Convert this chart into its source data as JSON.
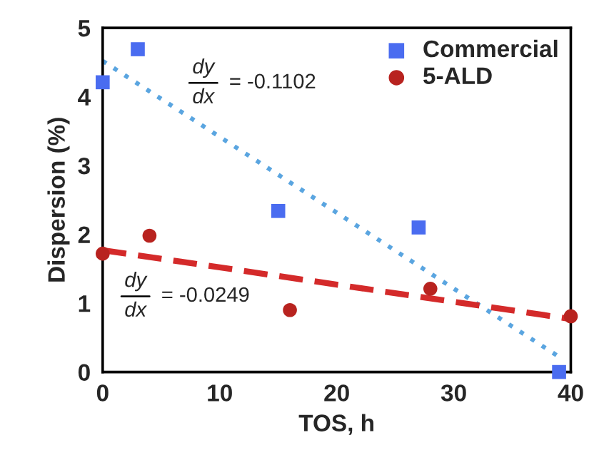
{
  "chart_data": {
    "type": "scatter",
    "xlabel": "TOS, h",
    "ylabel": "Dispersion (%)",
    "xlim": [
      0,
      40
    ],
    "ylim": [
      0,
      5
    ],
    "xticks": [
      0,
      10,
      20,
      30,
      40
    ],
    "yticks": [
      0,
      1,
      2,
      3,
      4,
      5
    ],
    "grid": false,
    "legend": "top right",
    "series": [
      {
        "name": "Commercial",
        "marker": "square",
        "color": "#4a6cf0",
        "x": [
          0,
          3,
          15,
          27,
          39
        ],
        "values": [
          4.21,
          4.69,
          2.34,
          2.1,
          0
        ]
      },
      {
        "name": "5-ALD",
        "marker": "circle",
        "color": "#b8231f",
        "x": [
          0,
          4,
          16,
          28,
          40
        ],
        "values": [
          1.72,
          1.98,
          0.9,
          1.21,
          0.81
        ]
      },
      {
        "type": "line",
        "line_style": "dotted",
        "marker": "none",
        "color": "#5aa5e0",
        "x": [
          0,
          39
        ],
        "values": [
          4.52,
          0.22
        ]
      },
      {
        "type": "line",
        "line_style": "dashed",
        "marker": "none",
        "color": "#d42a2a",
        "x": [
          0,
          40
        ],
        "values": [
          1.77,
          0.77
        ]
      }
    ],
    "annotations": [
      "dy",
      "dx",
      "= -0.1102",
      "dy",
      "dx",
      "= -0.0249"
    ]
  }
}
